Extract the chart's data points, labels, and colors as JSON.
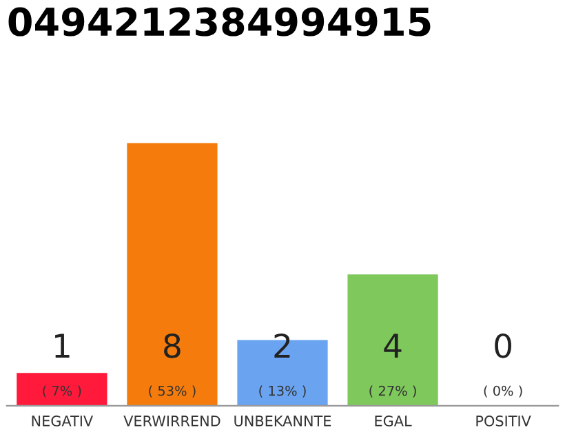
{
  "chart_data": {
    "type": "bar",
    "title": "0494212384994915",
    "categories": [
      "NEGATIV",
      "VERWIRREND",
      "UNBEKANNTE",
      "EGAL",
      "POSITIV"
    ],
    "values": [
      1,
      8,
      2,
      4,
      0
    ],
    "colors": [
      "#ff1a3c",
      "#f57c0c",
      "#6aa3f0",
      "#7ec85c",
      "#cccccc"
    ],
    "data_labels": true,
    "annotations": [
      "( 7% )",
      "( 53% )",
      "( 13% )",
      "( 27% )",
      "( 0% )"
    ],
    "grid": false,
    "legend": false
  }
}
